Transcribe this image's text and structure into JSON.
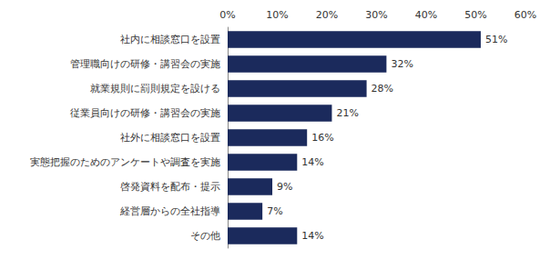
{
  "chart_data": {
    "type": "bar",
    "orientation": "horizontal",
    "categories": [
      "社内に相談窓口を設置",
      "管理職向けの研修・講習会の実施",
      "就業規則に罰則規定を設ける",
      "従業員向けの研修・講習会の実施",
      "社外に相談窓口を設置",
      "実態把握のためのアンケートや調査を実施",
      "啓発資料を配布・提示",
      "経営層からの全社指導",
      "その他"
    ],
    "values": [
      51,
      32,
      28,
      21,
      16,
      14,
      9,
      7,
      14
    ],
    "value_labels": [
      "51%",
      "32%",
      "28%",
      "21%",
      "16%",
      "14%",
      "9%",
      "7%",
      "14%"
    ],
    "color": "#1b2a5c",
    "xlim": [
      0,
      60
    ],
    "xticks": [
      {
        "value": 0,
        "label": "0%"
      },
      {
        "value": 10,
        "label": "10%"
      },
      {
        "value": 20,
        "label": "20%"
      },
      {
        "value": 30,
        "label": "30%"
      },
      {
        "value": 40,
        "label": "40%"
      },
      {
        "value": 50,
        "label": "50%"
      },
      {
        "value": 60,
        "label": "60%"
      }
    ],
    "grid": false,
    "data_labels": true
  }
}
